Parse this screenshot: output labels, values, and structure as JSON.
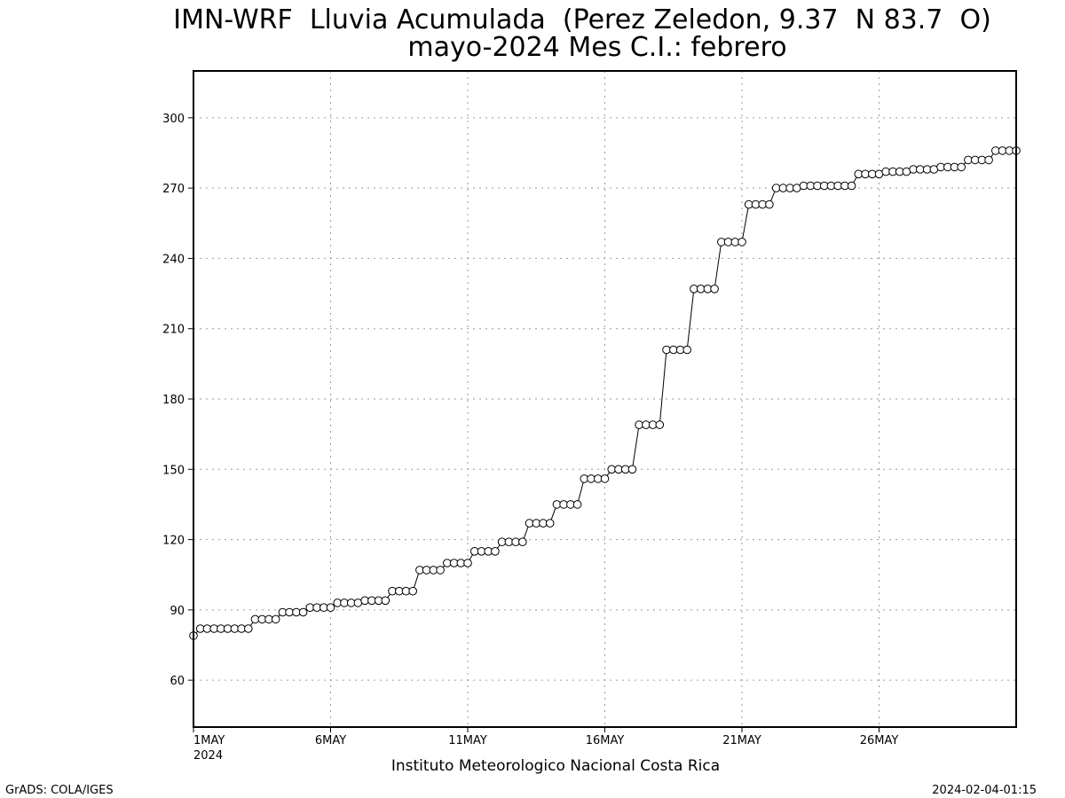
{
  "chart_data": {
    "type": "line",
    "title": "IMN-WRF  Lluvia Acumulada  (Perez Zeledon, 9.37  N 83.7  O)",
    "subtitle": "mayo-2024 Mes C.I.: febrero",
    "xlabel": "Instituto Meteorologico Nacional Costa Rica",
    "ylabel": "",
    "x_range_days": [
      1,
      31
    ],
    "ylim": [
      40,
      320
    ],
    "y_ticks": [
      60,
      90,
      120,
      150,
      180,
      210,
      240,
      270,
      300
    ],
    "x_ticks": [
      {
        "day": 1,
        "label": "1MAY",
        "label2": "2024"
      },
      {
        "day": 6,
        "label": "6MAY",
        "label2": ""
      },
      {
        "day": 11,
        "label": "11MAY",
        "label2": ""
      },
      {
        "day": 16,
        "label": "16MAY",
        "label2": ""
      },
      {
        "day": 21,
        "label": "21MAY",
        "label2": ""
      },
      {
        "day": 26,
        "label": "26MAY",
        "label2": ""
      }
    ],
    "grid": true,
    "marker": "open-circle",
    "series": [
      {
        "name": "",
        "values": [
          79,
          82,
          82,
          82,
          82,
          82,
          82,
          82,
          82,
          86,
          86,
          86,
          86,
          89,
          89,
          89,
          89,
          91,
          91,
          91,
          91,
          93,
          93,
          93,
          93,
          94,
          94,
          94,
          94,
          98,
          98,
          98,
          98,
          107,
          107,
          107,
          107,
          110,
          110,
          110,
          110,
          115,
          115,
          115,
          115,
          119,
          119,
          119,
          119,
          127,
          127,
          127,
          127,
          135,
          135,
          135,
          135,
          146,
          146,
          146,
          146,
          150,
          150,
          150,
          150,
          169,
          169,
          169,
          169,
          201,
          201,
          201,
          201,
          227,
          227,
          227,
          227,
          247,
          247,
          247,
          247,
          263,
          263,
          263,
          263,
          270,
          270,
          270,
          270,
          271,
          271,
          271,
          271,
          271,
          271,
          271,
          271,
          276,
          276,
          276,
          276,
          277,
          277,
          277,
          277,
          278,
          278,
          278,
          278,
          279,
          279,
          279,
          279,
          282,
          282,
          282,
          282,
          286,
          286,
          286,
          286
        ]
      }
    ]
  },
  "footer": {
    "left": "GrADS: COLA/IGES",
    "right": "2024-02-04-01:15"
  },
  "colors": {
    "line": "#000000",
    "grid": "#9a9a9a",
    "background": "#ffffff"
  }
}
